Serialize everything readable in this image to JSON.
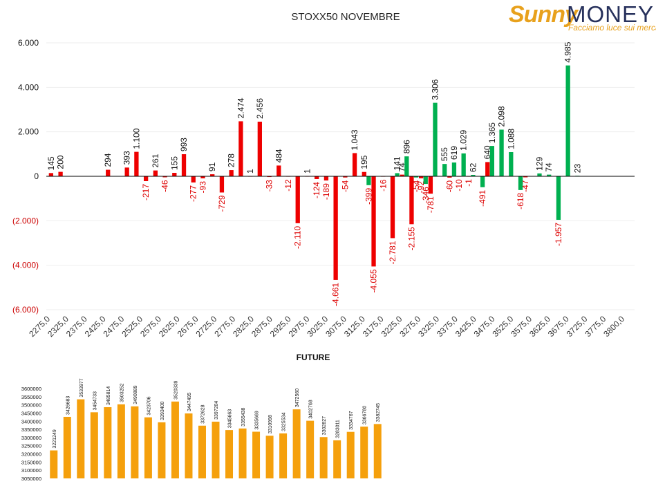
{
  "logo": {
    "brand_a": "Sunny",
    "brand_b": "MONEY",
    "tagline": "Facciamo luce sui mercati"
  },
  "chart_data": [
    {
      "type": "bar",
      "title": "STOXX50 NOVEMBRE",
      "ylim": [
        -6000,
        6000
      ],
      "y_ticks": [
        {
          "value": 6000,
          "label": "6.000"
        },
        {
          "value": 4000,
          "label": "4.000"
        },
        {
          "value": 2000,
          "label": "2.000"
        },
        {
          "value": 0,
          "label": "0"
        },
        {
          "value": -2000,
          "label": "(2.000)"
        },
        {
          "value": -4000,
          "label": "(4.000)"
        },
        {
          "value": -6000,
          "label": "(6.000)"
        }
      ],
      "x_tick_labels": [
        "2275,0",
        "2325,0",
        "2375,0",
        "2425,0",
        "2475,0",
        "2525,0",
        "2575,0",
        "2625,0",
        "2675,0",
        "2725,0",
        "2775,0",
        "2825,0",
        "2875,0",
        "2925,0",
        "2975,0",
        "3025,0",
        "3075,0",
        "3125,0",
        "3175,0",
        "3225,0",
        "3275,0",
        "3325,0",
        "3375,0",
        "3425,0",
        "3475,0",
        "3525,0",
        "3575,0",
        "3625,0",
        "3675,0",
        "3725,0",
        "3775,0",
        "3800,0"
      ],
      "colors": {
        "red": "#ee0000",
        "green": "#00b050",
        "neg_label": "#dd0000",
        "pos_label": "#111111"
      },
      "series": [
        {
          "name": "",
          "color": "red",
          "points": [
            {
              "x": 2275,
              "value": 145,
              "label": "145"
            },
            {
              "x": 2300,
              "value": 200,
              "label": "200"
            },
            {
              "x": 2425,
              "value": 294,
              "label": "294"
            },
            {
              "x": 2475,
              "value": 393,
              "label": "393"
            },
            {
              "x": 2500,
              "value": 1100,
              "label": "1.100"
            },
            {
              "x": 2525,
              "value": -217,
              "label": "-217"
            },
            {
              "x": 2550,
              "value": 261,
              "label": "261"
            },
            {
              "x": 2575,
              "value": -46,
              "label": "-46"
            },
            {
              "x": 2600,
              "value": 155,
              "label": "155"
            },
            {
              "x": 2625,
              "value": 993,
              "label": "993"
            },
            {
              "x": 2650,
              "value": -277,
              "label": "-277"
            },
            {
              "x": 2675,
              "value": -93,
              "label": "-93"
            },
            {
              "x": 2700,
              "value": 91,
              "label": "91"
            },
            {
              "x": 2725,
              "value": -729,
              "label": "-729"
            },
            {
              "x": 2750,
              "value": 278,
              "label": "278"
            },
            {
              "x": 2775,
              "value": 2474,
              "label": "2.474"
            },
            {
              "x": 2800,
              "value": 1,
              "label": "1"
            },
            {
              "x": 2825,
              "value": 2456,
              "label": "2.456"
            },
            {
              "x": 2850,
              "value": -33,
              "label": "-33"
            },
            {
              "x": 2875,
              "value": 484,
              "label": "484"
            },
            {
              "x": 2900,
              "value": -12,
              "label": "-12"
            },
            {
              "x": 2925,
              "value": -2110,
              "label": "-2.110"
            },
            {
              "x": 2950,
              "value": 1,
              "label": "1"
            },
            {
              "x": 2975,
              "value": -124,
              "label": "-124"
            },
            {
              "x": 3000,
              "value": -189,
              "label": "-189"
            },
            {
              "x": 3025,
              "value": -4661,
              "label": "-4.661"
            },
            {
              "x": 3050,
              "value": -54,
              "label": "-54"
            },
            {
              "x": 3075,
              "value": 1043,
              "label": "1.043"
            },
            {
              "x": 3100,
              "value": 195,
              "label": "195"
            },
            {
              "x": 3125,
              "value": -4055,
              "label": "-4.055"
            },
            {
              "x": 3150,
              "value": -16,
              "label": "-16"
            },
            {
              "x": 3175,
              "value": -2781,
              "label": "-2.781"
            },
            {
              "x": 3200,
              "value": 74,
              "label": "74"
            },
            {
              "x": 3225,
              "value": -2155,
              "label": "-2.155"
            },
            {
              "x": 3250,
              "value": -92,
              "label": "-92"
            },
            {
              "x": 3275,
              "value": -781,
              "label": "-781"
            },
            {
              "x": 3325,
              "value": -60,
              "label": "-60"
            },
            {
              "x": 3350,
              "value": -10,
              "label": "-10"
            },
            {
              "x": 3375,
              "value": -1,
              "label": "-1"
            },
            {
              "x": 3425,
              "value": 640,
              "label": "640"
            },
            {
              "x": 3525,
              "value": -47,
              "label": "-47"
            }
          ]
        },
        {
          "name": "",
          "color": "green",
          "points": [
            {
              "x": 3112,
              "value": -399,
              "label": "-399"
            },
            {
              "x": 3187,
              "value": 141,
              "label": "141"
            },
            {
              "x": 3212,
              "value": 896,
              "label": "896"
            },
            {
              "x": 3237,
              "value": -54,
              "label": "-54"
            },
            {
              "x": 3262,
              "value": -346,
              "label": "-346"
            },
            {
              "x": 3287,
              "value": 3306,
              "label": "3.306"
            },
            {
              "x": 3312,
              "value": 555,
              "label": "555"
            },
            {
              "x": 3337,
              "value": 619,
              "label": "619"
            },
            {
              "x": 3362,
              "value": 1029,
              "label": "1.029"
            },
            {
              "x": 3387,
              "value": 62,
              "label": "62"
            },
            {
              "x": 3412,
              "value": -491,
              "label": "-491"
            },
            {
              "x": 3437,
              "value": 1365,
              "label": "1.365"
            },
            {
              "x": 3462,
              "value": 2098,
              "label": "2.098"
            },
            {
              "x": 3487,
              "value": 1088,
              "label": "1.088"
            },
            {
              "x": 3512,
              "value": -618,
              "label": "-618"
            },
            {
              "x": 3562,
              "value": 129,
              "label": "129"
            },
            {
              "x": 3587,
              "value": 74,
              "label": "74"
            },
            {
              "x": 3612,
              "value": -1957,
              "label": "-1.957"
            },
            {
              "x": 3637,
              "value": 4985,
              "label": "4.985"
            },
            {
              "x": 3662,
              "value": 23,
              "label": "23"
            }
          ]
        }
      ]
    },
    {
      "type": "bar",
      "title": "FUTURE",
      "ylim": [
        3050000,
        3600000
      ],
      "y_ticks": [
        {
          "value": 3600000,
          "label": "3600000"
        },
        {
          "value": 3550000,
          "label": "3550000"
        },
        {
          "value": 3500000,
          "label": "3500000"
        },
        {
          "value": 3450000,
          "label": "3450000"
        },
        {
          "value": 3400000,
          "label": "3400000"
        },
        {
          "value": 3350000,
          "label": "3350000"
        },
        {
          "value": 3300000,
          "label": "3300000"
        },
        {
          "value": 3250000,
          "label": "3250000"
        },
        {
          "value": 3200000,
          "label": "3200000"
        },
        {
          "value": 3150000,
          "label": "3150000"
        },
        {
          "value": 3100000,
          "label": "3100000"
        },
        {
          "value": 3050000,
          "label": "3050000"
        }
      ],
      "color": "#f5a00c",
      "values": [
        3221249,
        3426683,
        3533977,
        3454733,
        3485814,
        3503252,
        3490889,
        3423706,
        3393400,
        3520339,
        3447495,
        3372628,
        3397204,
        3345663,
        3355438,
        3335669,
        3310998,
        3325534,
        3472560,
        3402768,
        3302827,
        3283011,
        3334767,
        3366780,
        3382745
      ],
      "labels": [
        "3221249",
        "3426683",
        "3533977",
        "3454733",
        "3485814",
        "3503252",
        "3490889",
        "3423706",
        "3393400",
        "3520339",
        "3447495",
        "3372628",
        "3397204",
        "3345663",
        "3355438",
        "3335669",
        "3310998",
        "3325534",
        "3472560",
        "3402768",
        "3302827",
        "3283011",
        "3334767",
        "3366780",
        "3382745"
      ]
    }
  ]
}
